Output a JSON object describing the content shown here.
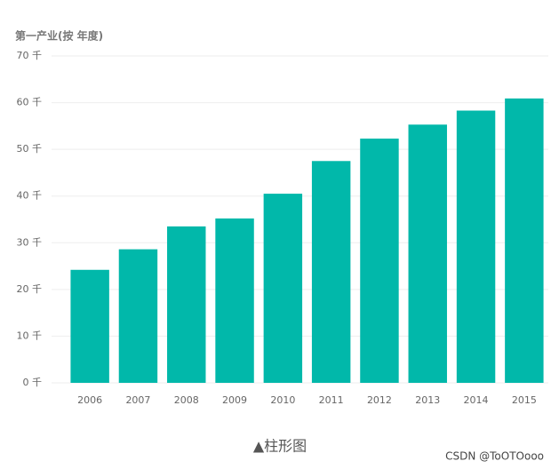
{
  "chart_data": {
    "type": "bar",
    "title": "第一产业(按 年度)",
    "categories": [
      "2006",
      "2007",
      "2008",
      "2009",
      "2010",
      "2011",
      "2012",
      "2013",
      "2014",
      "2015"
    ],
    "values": [
      24.2,
      28.6,
      33.5,
      35.2,
      40.5,
      47.5,
      52.3,
      55.3,
      58.3,
      60.9
    ],
    "color": "#01b8aa",
    "ylim": [
      0,
      70
    ],
    "yticks": [
      {
        "value": 0,
        "label": "0 千"
      },
      {
        "value": 10,
        "label": "10 千"
      },
      {
        "value": 20,
        "label": "20 千"
      },
      {
        "value": 30,
        "label": "30 千"
      },
      {
        "value": 40,
        "label": "40 千"
      },
      {
        "value": 50,
        "label": "50 千"
      },
      {
        "value": 60,
        "label": "60 千"
      },
      {
        "value": 70,
        "label": "70 千"
      }
    ],
    "grid": true,
    "caption": "▲柱形图",
    "watermark": "CSDN @ToOTOooo"
  }
}
